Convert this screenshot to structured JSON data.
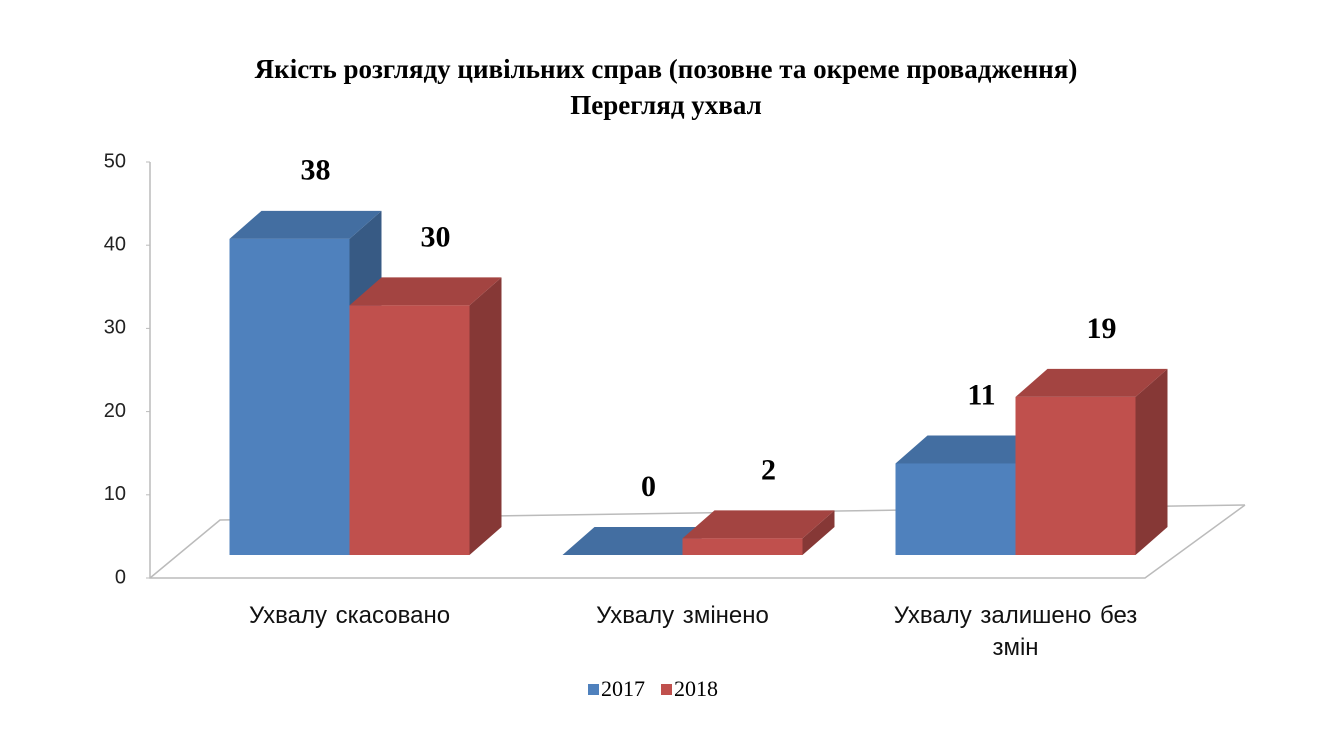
{
  "chart_data": {
    "type": "bar3d",
    "title": "Якість розгляду цивільних справ (позовне та окреме провадження)",
    "subtitle": "Перегляд ухвал",
    "categories": [
      "Ухвалу  скасовано",
      "Ухвалу  змінено",
      "Ухвалу  залишено без змін"
    ],
    "series": [
      {
        "name": "2017",
        "color": "#4f81bd",
        "values": [
          38,
          0,
          11
        ]
      },
      {
        "name": "2018",
        "color": "#c0504d",
        "values": [
          30,
          2,
          19
        ]
      }
    ],
    "ylim": [
      0,
      50
    ],
    "yticks": [
      0,
      10,
      20,
      30,
      40,
      50
    ],
    "grid": false,
    "legend": "bottom"
  }
}
